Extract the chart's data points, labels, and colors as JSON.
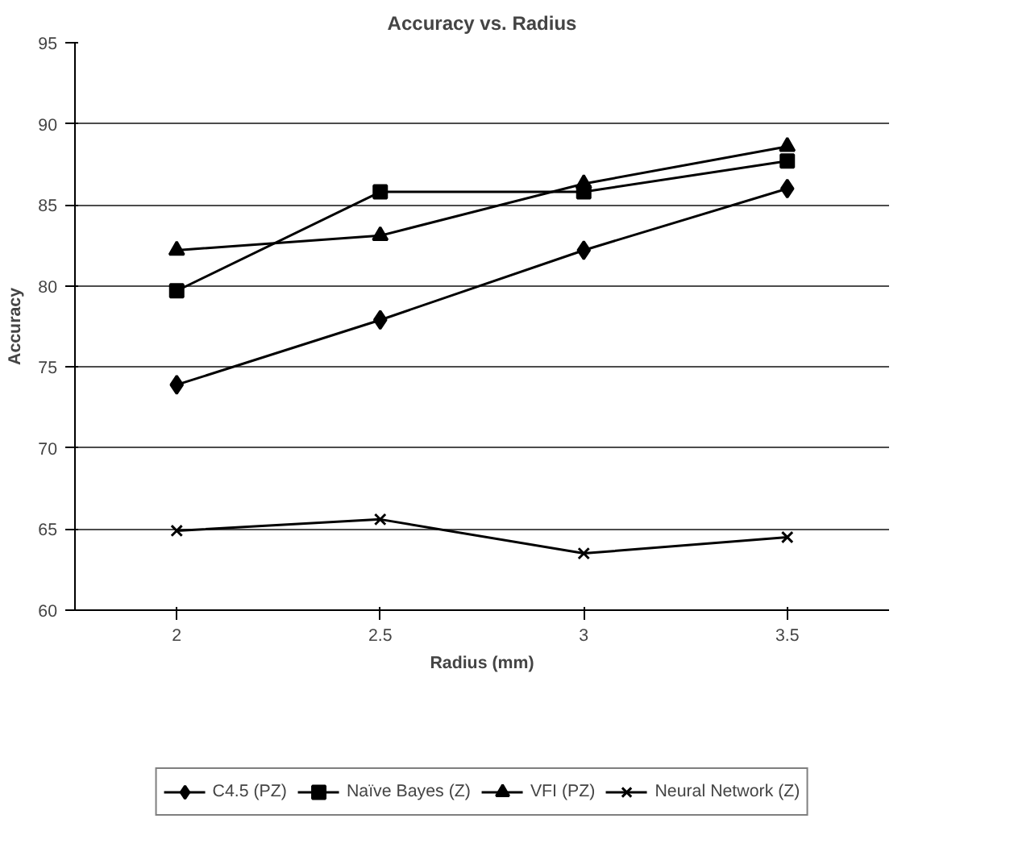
{
  "chart_data": {
    "type": "line",
    "title": "Accuracy vs. Radius",
    "xlabel": "Radius (mm)",
    "ylabel": "Accuracy",
    "categories": [
      "2",
      "2.5",
      "3",
      "3.5"
    ],
    "series": [
      {
        "name": "C4.5 (PZ)",
        "color": "#000000",
        "marker": "diamond",
        "values": [
          73.9,
          77.9,
          82.2,
          86.0
        ]
      },
      {
        "name": "Naïve Bayes (Z)",
        "color": "#000000",
        "marker": "square",
        "values": [
          79.7,
          85.8,
          85.8,
          87.7
        ]
      },
      {
        "name": "VFI (PZ)",
        "color": "#000000",
        "marker": "triangle",
        "values": [
          82.2,
          83.1,
          86.3,
          88.6
        ]
      },
      {
        "name": "Neural Network (Z)",
        "color": "#000000",
        "marker": "cross",
        "values": [
          64.9,
          65.6,
          63.5,
          64.5
        ]
      }
    ],
    "ylim": [
      60,
      95
    ],
    "yticks": [
      60,
      65,
      70,
      75,
      80,
      85,
      90,
      95
    ],
    "grid": "y",
    "legend": "bottom",
    "line_style": "solid"
  }
}
